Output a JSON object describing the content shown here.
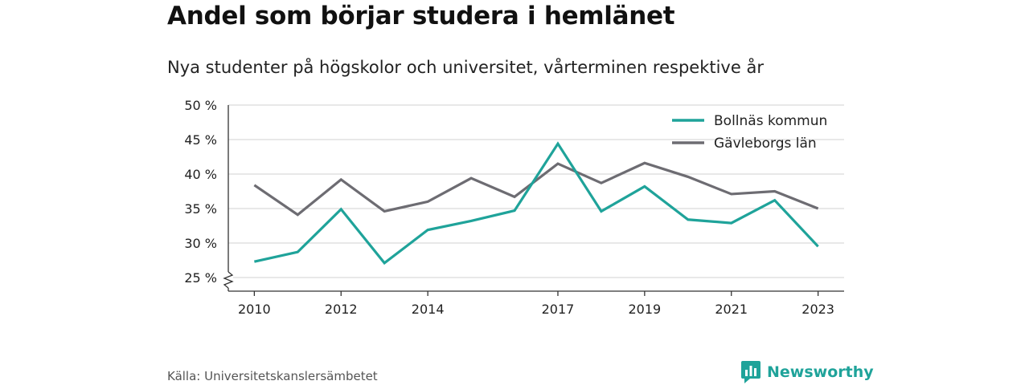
{
  "header": {
    "title": "Andel som börjar studera i hemlänet",
    "subtitle": "Nya studenter på högskolor och universitet, vårterminen respektive år"
  },
  "footer": {
    "source": "Källa: Universitetskanslersämbetet",
    "brand": "Newsworthy",
    "brand_icon": "bar-chart-icon"
  },
  "colors": {
    "teal": "#1fa39a",
    "gray": "#6d6c72",
    "grid": "#d9d9d9",
    "axis": "#333333"
  },
  "chart_data": {
    "type": "line",
    "x": [
      2010,
      2011,
      2012,
      2013,
      2014,
      2015,
      2016,
      2017,
      2018,
      2019,
      2020,
      2021,
      2022,
      2023
    ],
    "x_tick_labels": [
      "2010",
      "2012",
      "2014",
      "2017",
      "2019",
      "2021",
      "2023"
    ],
    "y_tick_labels": [
      "25 %",
      "30 %",
      "35 %",
      "40 %",
      "45 %",
      "50 %"
    ],
    "ylim": [
      25,
      50
    ],
    "y_axis_break": true,
    "grid": true,
    "legend_position": "top-right",
    "series": [
      {
        "name": "Bollnäs kommun",
        "color": "#1fa39a",
        "values": [
          27.3,
          28.7,
          34.9,
          27.1,
          31.9,
          33.2,
          34.7,
          44.4,
          34.6,
          38.2,
          33.4,
          32.9,
          36.2,
          29.5
        ]
      },
      {
        "name": "Gävleborgs län",
        "color": "#6d6c72",
        "values": [
          38.4,
          34.1,
          39.2,
          34.6,
          36.0,
          39.4,
          36.7,
          41.5,
          38.7,
          41.6,
          39.6,
          37.1,
          37.5,
          35.0
        ]
      }
    ]
  }
}
